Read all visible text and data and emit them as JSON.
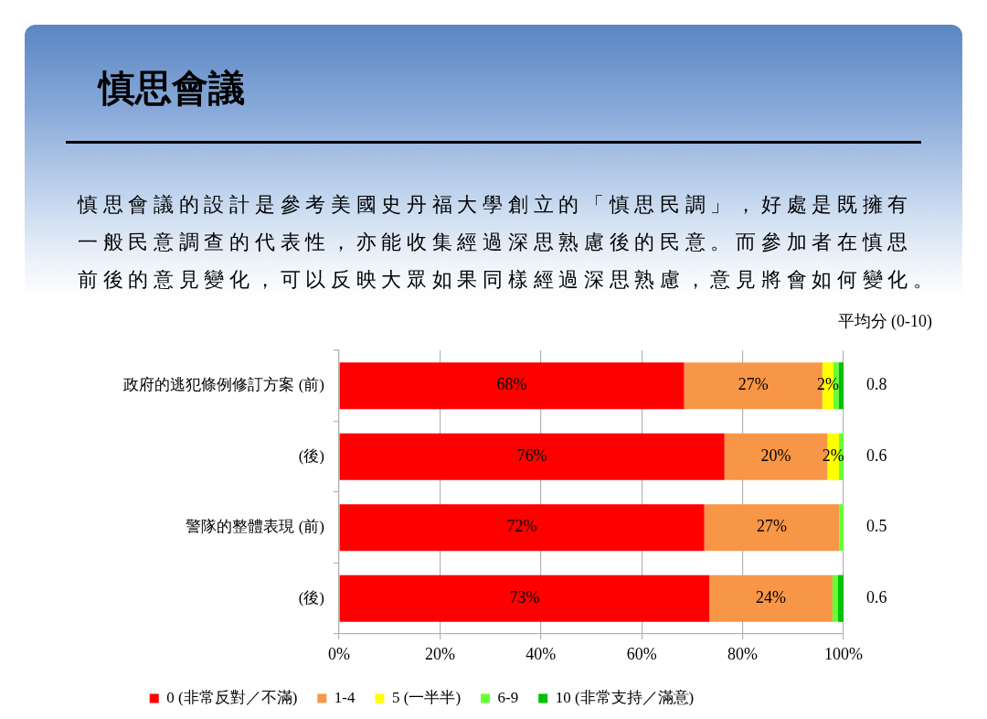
{
  "chart_data": {
    "type": "bar",
    "orientation": "horizontal",
    "stacked": true,
    "title": "慎思會議",
    "subtitle": "慎思會議的設計是參考美國史丹福大學創立的「慎思民調」，好處是既擁有一般民意調查的代表性，亦能收集經過深思熟慮後的民意。而參加者在慎思前後的意見變化，可以反映大眾如果同樣經過深思熟慮，意見將會如何變化。",
    "categories": [
      "政府的逃犯條例修訂方案 (前)",
      "(後)",
      "警隊的整體表現 (前)",
      "(後)"
    ],
    "series": [
      {
        "name": "0 (非常反對／不滿)",
        "color": "#ff0000",
        "values": [
          68.4,
          76.4,
          72.4,
          73.4
        ],
        "value_labels": [
          "68%",
          "76%",
          "72%",
          "73%"
        ]
      },
      {
        "name": "1-4",
        "color": "#f79646",
        "values": [
          27.4,
          20.4,
          26.8,
          24.4
        ],
        "value_labels": [
          "27%",
          "20%",
          "27%",
          "24%"
        ]
      },
      {
        "name": "5 (一半半)",
        "color": "#ffff00",
        "values": [
          2.2,
          2.3,
          0,
          0
        ],
        "value_labels": [
          "2%",
          "2%",
          null,
          null
        ]
      },
      {
        "name": "6-9",
        "color": "#66ff33",
        "values": [
          1.0,
          0.9,
          0.8,
          1.1
        ]
      },
      {
        "name": "10 (非常支持／滿意)",
        "color": "#00c000",
        "values": [
          1.0,
          0,
          0,
          1.1
        ]
      }
    ],
    "xlim": [
      0,
      100
    ],
    "xticks": [
      {
        "value": 0,
        "label": "0%"
      },
      {
        "value": 20,
        "label": "20%"
      },
      {
        "value": 40,
        "label": "40%"
      },
      {
        "value": 60,
        "label": "60%"
      },
      {
        "value": 80,
        "label": "80%"
      },
      {
        "value": 100,
        "label": "100%"
      }
    ],
    "grid": "x",
    "legend": "bottom",
    "annotations": [
      "平均分 (0-10)",
      "0.8",
      "0.6",
      "0.5",
      "0.6"
    ]
  }
}
